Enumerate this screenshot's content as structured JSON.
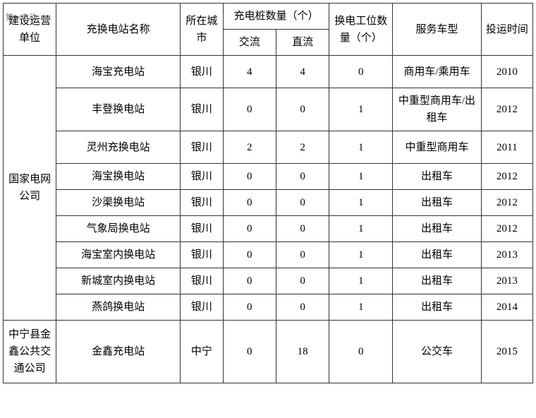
{
  "watermark": "第一电动",
  "headers": {
    "operator": "建设运营单位",
    "station": "充换电站名称",
    "city": "所在城市",
    "charger_count": "充电桩数量（个）",
    "ac": "交流",
    "dc": "直流",
    "swap_count": "换电工位数量（个）",
    "vehicle_type": "服务车型",
    "year": "投运时间"
  },
  "groups": [
    {
      "operator": "国家电网公司",
      "rows": [
        {
          "station": "海宝充电站",
          "city": "银川",
          "ac": "4",
          "dc": "4",
          "swap": "0",
          "type": "商用车/乘用车",
          "year": "2010",
          "tall": true
        },
        {
          "station": "丰登换电站",
          "city": "银川",
          "ac": "0",
          "dc": "0",
          "swap": "1",
          "type": "中重型商用车/出租车",
          "year": "2012",
          "tall": true
        },
        {
          "station": "灵州充换电站",
          "city": "银川",
          "ac": "2",
          "dc": "2",
          "swap": "1",
          "type": "中重型商用车",
          "year": "2011",
          "tall": true
        },
        {
          "station": "海宝换电站",
          "city": "银川",
          "ac": "0",
          "dc": "0",
          "swap": "1",
          "type": "出租车",
          "year": "2012"
        },
        {
          "station": "沙渠换电站",
          "city": "银川",
          "ac": "0",
          "dc": "0",
          "swap": "1",
          "type": "出租车",
          "year": "2012"
        },
        {
          "station": "气象局换电站",
          "city": "银川",
          "ac": "0",
          "dc": "0",
          "swap": "1",
          "type": "出租车",
          "year": "2012"
        },
        {
          "station": "海宝室内换电站",
          "city": "银川",
          "ac": "0",
          "dc": "0",
          "swap": "1",
          "type": "出租车",
          "year": "2013"
        },
        {
          "station": "新城室内换电站",
          "city": "银川",
          "ac": "0",
          "dc": "0",
          "swap": "1",
          "type": "出租车",
          "year": "2013"
        },
        {
          "station": "燕鸽换电站",
          "city": "银川",
          "ac": "0",
          "dc": "0",
          "swap": "1",
          "type": "出租车",
          "year": "2014"
        }
      ]
    },
    {
      "operator": "中宁县金鑫公共交通公司",
      "rows": [
        {
          "station": "金鑫充电站",
          "city": "中宁",
          "ac": "0",
          "dc": "18",
          "swap": "0",
          "type": "公交车",
          "year": "2015",
          "tall": true,
          "extra_tall": true
        }
      ]
    }
  ]
}
